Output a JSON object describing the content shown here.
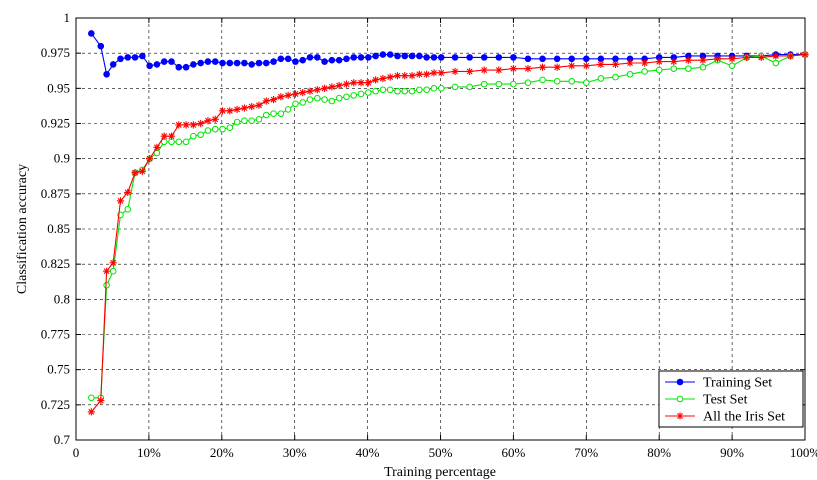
{
  "chart_data": {
    "type": "line",
    "title": "",
    "xlabel": "Training percentage",
    "ylabel": "Classification accuracy",
    "xlim": [
      0,
      100
    ],
    "ylim": [
      0.7,
      1.0
    ],
    "grid": true,
    "legend_position": "bottom-right",
    "x_ticks": [
      0,
      10,
      20,
      30,
      40,
      50,
      60,
      70,
      80,
      90,
      100
    ],
    "x_tick_labels": [
      "0",
      "10%",
      "20%",
      "30%",
      "40%",
      "50%",
      "60%",
      "70%",
      "80%",
      "90%",
      "100%"
    ],
    "y_ticks": [
      0.7,
      0.725,
      0.75,
      0.775,
      0.8,
      0.825,
      0.85,
      0.875,
      0.9,
      0.925,
      0.95,
      0.975,
      1.0
    ],
    "y_tick_labels": [
      "0.7",
      "0.725",
      "0.75",
      "0.775",
      "0.8",
      "0.825",
      "0.85",
      "0.875",
      "0.9",
      "0.925",
      "0.95",
      "0.975",
      "1"
    ],
    "series": [
      {
        "name": "Training Set",
        "color": "#0000ff",
        "marker": "filled-circle",
        "x": [
          2.1,
          3.4,
          4.2,
          5.1,
          6.1,
          7.1,
          8.1,
          9.1,
          10.1,
          11.1,
          12.1,
          13.1,
          14.1,
          15.1,
          16.1,
          17.1,
          18.1,
          19.1,
          20.1,
          21.1,
          22.1,
          23.1,
          24.1,
          25.1,
          26.1,
          27.1,
          28.1,
          29.1,
          30.1,
          31.1,
          32.1,
          33.1,
          34.1,
          35.1,
          36.1,
          37.1,
          38.1,
          39.1,
          40.1,
          41.1,
          42.1,
          43.1,
          44.1,
          45.1,
          46.1,
          47.1,
          48.1,
          49.1,
          50.1,
          52,
          54,
          56,
          58,
          60,
          62,
          64,
          66,
          68,
          70,
          72,
          74,
          76,
          78,
          80,
          82,
          84,
          86,
          88,
          90,
          92,
          94,
          96,
          98,
          100
        ],
        "values": [
          0.989,
          0.98,
          0.96,
          0.967,
          0.971,
          0.972,
          0.972,
          0.973,
          0.966,
          0.967,
          0.969,
          0.969,
          0.965,
          0.965,
          0.967,
          0.968,
          0.969,
          0.969,
          0.968,
          0.968,
          0.968,
          0.968,
          0.967,
          0.968,
          0.968,
          0.969,
          0.971,
          0.971,
          0.969,
          0.97,
          0.972,
          0.972,
          0.969,
          0.97,
          0.97,
          0.971,
          0.972,
          0.972,
          0.972,
          0.973,
          0.974,
          0.974,
          0.973,
          0.973,
          0.973,
          0.973,
          0.972,
          0.972,
          0.972,
          0.972,
          0.972,
          0.972,
          0.972,
          0.972,
          0.971,
          0.971,
          0.971,
          0.971,
          0.971,
          0.971,
          0.971,
          0.971,
          0.971,
          0.972,
          0.972,
          0.973,
          0.973,
          0.973,
          0.973,
          0.973,
          0.973,
          0.974,
          0.974,
          0.974
        ]
      },
      {
        "name": "Test Set",
        "color": "#00e600",
        "marker": "open-circle",
        "x": [
          2.1,
          3.4,
          4.2,
          5.1,
          6.1,
          7.1,
          8.1,
          9.1,
          10.1,
          11.1,
          12.1,
          13.1,
          14.1,
          15.1,
          16.1,
          17.1,
          18.1,
          19.1,
          20.1,
          21.1,
          22.1,
          23.1,
          24.1,
          25.1,
          26.1,
          27.1,
          28.1,
          29.1,
          30.1,
          31.1,
          32.1,
          33.1,
          34.1,
          35.1,
          36.1,
          37.1,
          38.1,
          39.1,
          40.1,
          41.1,
          42.1,
          43.1,
          44.1,
          45.1,
          46.1,
          47.1,
          48.1,
          49.1,
          50.1,
          52,
          54,
          56,
          58,
          60,
          62,
          64,
          66,
          68,
          70,
          72,
          74,
          76,
          78,
          80,
          82,
          84,
          86,
          88,
          90,
          92,
          94,
          96,
          98,
          100
        ],
        "values": [
          0.73,
          0.73,
          0.81,
          0.82,
          0.86,
          0.864,
          0.89,
          0.892,
          0.9,
          0.904,
          0.912,
          0.912,
          0.912,
          0.912,
          0.916,
          0.917,
          0.92,
          0.921,
          0.921,
          0.922,
          0.926,
          0.927,
          0.927,
          0.928,
          0.931,
          0.932,
          0.932,
          0.935,
          0.939,
          0.94,
          0.942,
          0.943,
          0.942,
          0.941,
          0.943,
          0.944,
          0.945,
          0.946,
          0.947,
          0.948,
          0.949,
          0.949,
          0.948,
          0.948,
          0.948,
          0.949,
          0.949,
          0.95,
          0.95,
          0.951,
          0.951,
          0.953,
          0.953,
          0.953,
          0.954,
          0.956,
          0.955,
          0.955,
          0.954,
          0.957,
          0.958,
          0.96,
          0.962,
          0.963,
          0.964,
          0.964,
          0.965,
          0.97,
          0.966,
          0.972,
          0.973,
          0.968,
          0.973,
          0.974
        ]
      },
      {
        "name": "All the Iris Set",
        "color": "#ff0000",
        "marker": "star",
        "x": [
          2.1,
          3.4,
          4.2,
          5.1,
          6.1,
          7.1,
          8.1,
          9.1,
          10.1,
          11.1,
          12.1,
          13.1,
          14.1,
          15.1,
          16.1,
          17.1,
          18.1,
          19.1,
          20.1,
          21.1,
          22.1,
          23.1,
          24.1,
          25.1,
          26.1,
          27.1,
          28.1,
          29.1,
          30.1,
          31.1,
          32.1,
          33.1,
          34.1,
          35.1,
          36.1,
          37.1,
          38.1,
          39.1,
          40.1,
          41.1,
          42.1,
          43.1,
          44.1,
          45.1,
          46.1,
          47.1,
          48.1,
          49.1,
          50.1,
          52,
          54,
          56,
          58,
          60,
          62,
          64,
          66,
          68,
          70,
          72,
          74,
          76,
          78,
          80,
          82,
          84,
          86,
          88,
          90,
          92,
          94,
          96,
          98,
          100
        ],
        "values": [
          0.72,
          0.728,
          0.82,
          0.826,
          0.87,
          0.876,
          0.89,
          0.891,
          0.9,
          0.908,
          0.916,
          0.916,
          0.924,
          0.924,
          0.924,
          0.925,
          0.927,
          0.928,
          0.934,
          0.934,
          0.935,
          0.936,
          0.937,
          0.938,
          0.941,
          0.942,
          0.944,
          0.945,
          0.946,
          0.947,
          0.948,
          0.949,
          0.95,
          0.951,
          0.952,
          0.953,
          0.954,
          0.954,
          0.954,
          0.956,
          0.957,
          0.958,
          0.959,
          0.959,
          0.959,
          0.96,
          0.96,
          0.961,
          0.961,
          0.962,
          0.962,
          0.963,
          0.963,
          0.964,
          0.964,
          0.965,
          0.965,
          0.966,
          0.966,
          0.967,
          0.967,
          0.968,
          0.968,
          0.969,
          0.969,
          0.97,
          0.97,
          0.971,
          0.971,
          0.972,
          0.972,
          0.973,
          0.973,
          0.974
        ]
      }
    ]
  }
}
